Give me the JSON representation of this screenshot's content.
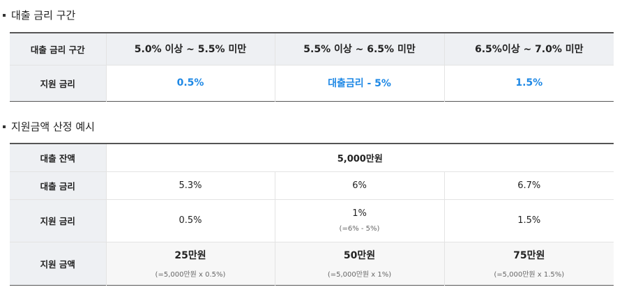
{
  "section1": {
    "title": "대출 금리 구간",
    "row_header_1": "대출 금리 구간",
    "ranges": [
      "5.0% 이상 ~ 5.5% 미만",
      "5.5% 이상 ~ 6.5% 미만",
      "6.5%이상 ~ 7.0% 미만"
    ],
    "row_header_2": "지원 금리",
    "support_rates": [
      "0.5%",
      "대출금리 - 5%",
      "1.5%"
    ]
  },
  "section2": {
    "title": "지원금액 산정 예시",
    "balance_label": "대출 잔액",
    "balance_value": "5,000만원",
    "loan_rate_label": "대출 금리",
    "loan_rates": [
      "5.3%",
      "6%",
      "6.7%"
    ],
    "support_rate_label": "지원 금리",
    "support_rates": [
      "0.5%",
      "1%",
      "1.5%"
    ],
    "support_rate_note": "(=6% - 5%)",
    "amount_label": "지원 금액",
    "amounts": [
      "25만원",
      "50만원",
      "75만원"
    ],
    "amount_notes": [
      "(=5,000만원 x 0.5%)",
      "(=5,000만원 x 1%)",
      "(=5,000만원 x 1.5%)"
    ]
  },
  "colors": {
    "accent_blue": "#1e88e5",
    "header_bg": "#eef0f3"
  }
}
